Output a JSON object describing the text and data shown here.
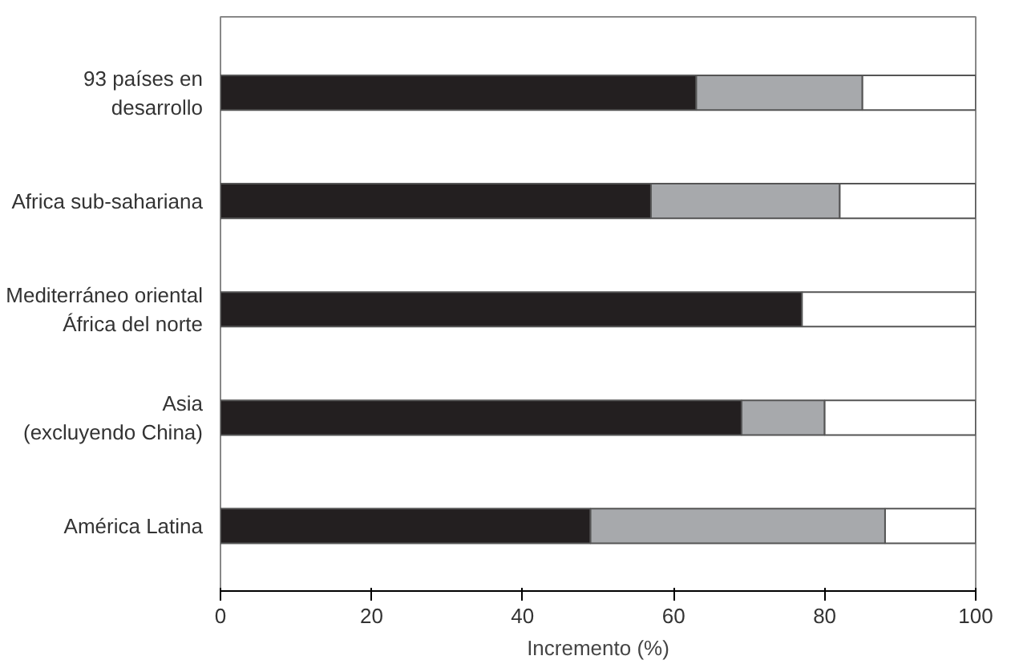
{
  "chart_data": {
    "type": "bar",
    "orientation": "horizontal",
    "stacked": true,
    "xlabel": "Incremento (%)",
    "categories": [
      "93 países en\ndesarrollo",
      "Africa sub-sahariana",
      "Mediterráneo oriental\nÁfrica del norte",
      "Asia\n(excluyendo China)",
      "América Latina"
    ],
    "series": [
      {
        "color": "#231f20",
        "values": [
          63,
          57,
          77,
          69,
          49
        ]
      },
      {
        "color": "#a7a9ac",
        "values": [
          22,
          25,
          0,
          11,
          39
        ]
      },
      {
        "color": "#ffffff",
        "values": [
          15,
          18,
          23,
          20,
          12
        ]
      }
    ],
    "xlim": [
      0,
      100
    ],
    "xticks": [
      0,
      20,
      40,
      60,
      80,
      100
    ],
    "grid": false
  }
}
